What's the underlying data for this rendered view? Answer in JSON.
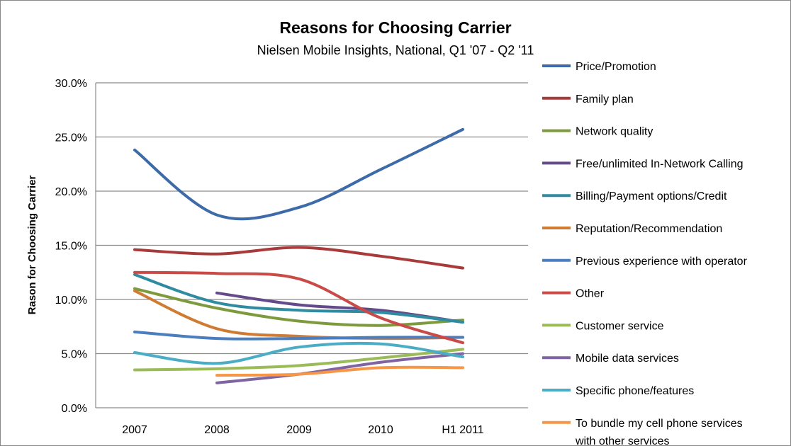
{
  "chart_data": {
    "type": "line",
    "title": "Reasons for Choosing Carrier",
    "subtitle": "Nielsen Mobile Insights, National, Q1 '07 - Q2 '11",
    "xlabel": "",
    "ylabel": "Rason for Choosing Carrier",
    "categories": [
      "2007",
      "2008",
      "2009",
      "2010",
      "H1 2011"
    ],
    "ylim": [
      0,
      30
    ],
    "yticks": [
      "0.0%",
      "5.0%",
      "10.0%",
      "15.0%",
      "20.0%",
      "25.0%",
      "30.0%"
    ],
    "grid": true,
    "smooth": true,
    "legend_position": "right",
    "series": [
      {
        "name": "Price/Promotion",
        "color": "#3d6aa8",
        "values": [
          23.8,
          17.8,
          18.5,
          22.0,
          25.7
        ]
      },
      {
        "name": "Family plan",
        "color": "#a83b3a",
        "values": [
          14.6,
          14.2,
          14.8,
          14.0,
          12.9
        ]
      },
      {
        "name": "Network quality",
        "color": "#7e9a3e",
        "values": [
          11.0,
          9.2,
          8.0,
          7.6,
          8.1
        ]
      },
      {
        "name": "Free/unlimited In-Network Calling",
        "color": "#644a8a",
        "values": [
          null,
          10.6,
          9.5,
          9.0,
          7.9
        ]
      },
      {
        "name": "Billing/Payment options/Credit",
        "color": "#2f8ca0",
        "values": [
          12.3,
          9.7,
          9.0,
          8.8,
          7.9
        ]
      },
      {
        "name": "Reputation/Recommendation",
        "color": "#d07b34",
        "values": [
          10.8,
          7.3,
          6.6,
          6.4,
          6.5
        ]
      },
      {
        "name": "Previous experience with operator",
        "color": "#4a7ebf",
        "values": [
          7.0,
          6.4,
          6.4,
          6.5,
          6.5
        ]
      },
      {
        "name": "Other",
        "color": "#c94a46",
        "values": [
          12.5,
          12.4,
          11.9,
          8.3,
          6.0
        ]
      },
      {
        "name": "Customer service",
        "color": "#9bbb59",
        "values": [
          3.5,
          3.6,
          3.9,
          4.6,
          5.4
        ]
      },
      {
        "name": "Mobile data services",
        "color": "#8064a2",
        "values": [
          null,
          2.3,
          3.1,
          4.2,
          5.0
        ]
      },
      {
        "name": "Specific phone/features",
        "color": "#4bacc6",
        "values": [
          5.1,
          4.1,
          5.6,
          5.9,
          4.7
        ]
      },
      {
        "name": "To bundle my cell phone services with other services",
        "color": "#f79646",
        "values": [
          null,
          3.0,
          3.1,
          3.7,
          3.7
        ]
      }
    ]
  }
}
